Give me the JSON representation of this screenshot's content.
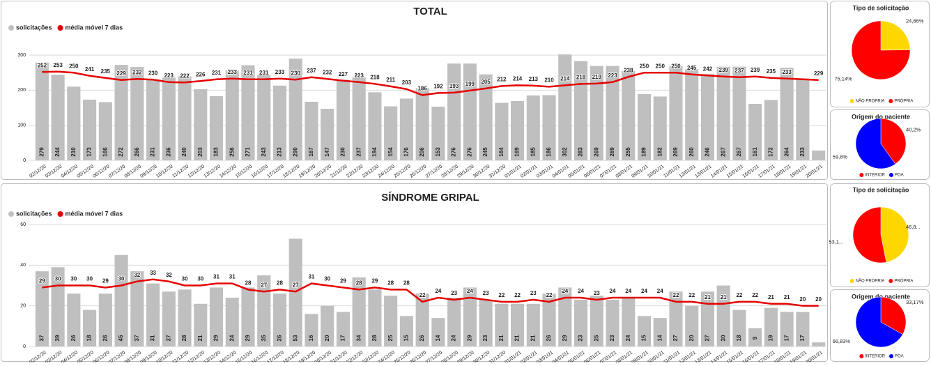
{
  "chart_data": [
    {
      "type": "combo",
      "title": "TOTAL",
      "categories": [
        "02/12/20",
        "03/12/20",
        "04/12/20",
        "05/12/20",
        "06/12/20",
        "07/12/20",
        "08/12/20",
        "09/12/20",
        "10/12/20",
        "11/12/20",
        "12/12/20",
        "13/12/20",
        "14/12/20",
        "15/12/20",
        "16/12/20",
        "17/12/20",
        "18/12/20",
        "19/12/20",
        "20/12/20",
        "21/12/20",
        "22/12/20",
        "23/12/20",
        "24/12/20",
        "25/12/20",
        "26/12/20",
        "27/12/20",
        "28/12/20",
        "29/12/20",
        "30/12/20",
        "31/12/20",
        "01/01/21",
        "02/01/21",
        "03/01/21",
        "04/01/21",
        "05/01/21",
        "06/01/21",
        "07/01/21",
        "08/01/21",
        "09/01/21",
        "10/01/21",
        "11/01/21",
        "12/01/21",
        "13/01/21",
        "14/01/21",
        "15/01/21",
        "16/01/21",
        "17/01/21",
        "18/01/21",
        "19/01/21",
        "20/01/21"
      ],
      "series": [
        {
          "name": "solicitações",
          "mark": "bar",
          "color": "#bfbfbf",
          "values": [
            279,
            244,
            210,
            173,
            166,
            272,
            266,
            231,
            236,
            240,
            203,
            183,
            256,
            271,
            243,
            213,
            290,
            167,
            147,
            230,
            237,
            194,
            154,
            176,
            206,
            153,
            276,
            276,
            245,
            164,
            169,
            185,
            186,
            302,
            283,
            269,
            269,
            255,
            189,
            182,
            269,
            260,
            246,
            267,
            267,
            161,
            172,
            264,
            233,
            28
          ],
          "value_labels": [
            "279",
            "244",
            "210",
            "173",
            "166",
            "272",
            "266",
            "231",
            "236",
            "240",
            "203",
            "183",
            "256",
            "271",
            "243",
            "213",
            "290",
            "167",
            "147",
            "230",
            "237",
            "194",
            "154",
            "176",
            "206",
            "153",
            "276",
            "276",
            "245",
            "164",
            "169",
            "185",
            "186",
            "302",
            "283",
            "269",
            "269",
            "255",
            "189",
            "182",
            "269",
            "260",
            "246",
            "267",
            "267",
            "161",
            "172",
            "264",
            "233",
            null
          ]
        },
        {
          "name": "média móvel 7 dias",
          "mark": "line",
          "color": "#e60000",
          "values": [
            252,
            253,
            250,
            241,
            235,
            229,
            232,
            230,
            223,
            222,
            226,
            231,
            233,
            231,
            231,
            233,
            230,
            237,
            232,
            227,
            223,
            218,
            211,
            203,
            186,
            192,
            193,
            199,
            205,
            212,
            214,
            213,
            210,
            214,
            218,
            219,
            223,
            238,
            250,
            250,
            250,
            245,
            242,
            239,
            237,
            239,
            235,
            233,
            231,
            229
          ],
          "value_labels": [
            "252",
            "253",
            "250",
            "241",
            "235",
            "229",
            "232",
            "230",
            "223",
            "222",
            "226",
            "231",
            "233",
            "231",
            "231",
            "233",
            "230",
            "237",
            "232",
            "227",
            "223",
            "218",
            "211",
            "203",
            "186",
            "192",
            "193",
            "199",
            "205",
            "212",
            "214",
            "213",
            "210",
            "214",
            "218",
            "219",
            "223",
            "238",
            "250",
            "250",
            "250",
            "245",
            "242",
            "239",
            "237",
            "239",
            "235",
            "233",
            null,
            "229"
          ]
        }
      ],
      "ylim": [
        0,
        320
      ],
      "yticks": [
        0,
        100,
        200,
        300
      ],
      "grid": true
    },
    {
      "type": "pie",
      "title": "Tipo de solicitação",
      "categories": [
        "NÃO PRÓPRIA",
        "PRÓPRIA"
      ],
      "values": [
        24.86,
        75.14
      ],
      "value_labels": [
        "24,86%",
        "75,14%"
      ],
      "colors": [
        "#ffd700",
        "#ff0000"
      ]
    },
    {
      "type": "pie",
      "title": "Origem do paciente",
      "categories": [
        "INTERIOR",
        "POA"
      ],
      "values": [
        40.2,
        59.8
      ],
      "value_labels": [
        "40,2%",
        "59,8%"
      ],
      "colors": [
        "#ff0000",
        "#0000ff"
      ]
    },
    {
      "type": "combo",
      "title": "SÍNDROME GRIPAL",
      "categories": [
        "02/12/20",
        "03/12/20",
        "04/12/20",
        "05/12/20",
        "06/12/20",
        "07/12/20",
        "08/12/20",
        "09/12/20",
        "10/12/20",
        "11/12/20",
        "12/12/20",
        "13/12/20",
        "14/12/20",
        "15/12/20",
        "16/12/20",
        "17/12/20",
        "18/12/20",
        "19/12/20",
        "20/12/20",
        "21/12/20",
        "22/12/20",
        "23/12/20",
        "24/12/20",
        "25/12/20",
        "26/12/20",
        "27/12/20",
        "28/12/20",
        "29/12/20",
        "30/12/20",
        "31/12/20",
        "01/01/21",
        "02/01/21",
        "03/01/21",
        "04/01/21",
        "05/01/21",
        "06/01/21",
        "07/01/21",
        "08/01/21",
        "09/01/21",
        "10/01/21",
        "11/01/21",
        "12/01/21",
        "13/01/21",
        "14/01/21",
        "15/01/21",
        "16/01/21",
        "17/01/21",
        "18/01/21",
        "19/01/21",
        "20/01/21"
      ],
      "series": [
        {
          "name": "solicitações",
          "mark": "bar",
          "color": "#bfbfbf",
          "values": [
            37,
            39,
            26,
            18,
            26,
            45,
            37,
            31,
            27,
            28,
            21,
            29,
            24,
            29,
            35,
            26,
            53,
            16,
            20,
            17,
            34,
            28,
            25,
            15,
            26,
            14,
            24,
            29,
            23,
            21,
            21,
            21,
            26,
            29,
            23,
            25,
            23,
            24,
            15,
            14,
            27,
            20,
            27,
            30,
            18,
            9,
            19,
            17,
            17,
            2
          ],
          "value_labels": [
            "37",
            "39",
            "26",
            "18",
            "26",
            "45",
            "37",
            "31",
            "27",
            "28",
            "21",
            "29",
            "24",
            "29",
            "35",
            "26",
            "53",
            "16",
            "20",
            "17",
            "34",
            "28",
            "25",
            "15",
            "26",
            "14",
            "24",
            "29",
            "23",
            "21",
            "21",
            "21",
            "26",
            "29",
            "23",
            "25",
            "23",
            "24",
            "15",
            "14",
            "27",
            "20",
            "27",
            "30",
            "18",
            "9",
            "19",
            "17",
            "17",
            null
          ]
        },
        {
          "name": "média móvel 7 dias",
          "mark": "line",
          "color": "#e60000",
          "values": [
            29,
            30,
            30,
            30,
            29,
            30,
            32,
            33,
            32,
            30,
            30,
            31,
            31,
            28,
            27,
            28,
            27,
            31,
            30,
            29,
            28,
            29,
            28,
            28,
            22,
            24,
            23,
            24,
            23,
            22,
            22,
            23,
            22,
            24,
            24,
            23,
            24,
            24,
            24,
            24,
            22,
            22,
            21,
            21,
            22,
            22,
            21,
            21,
            20,
            20
          ]
        }
      ],
      "ylim": [
        0,
        62
      ],
      "yticks": [
        0,
        20,
        40,
        60
      ],
      "grid": true
    },
    {
      "type": "pie",
      "title": "Tipo de solicitação",
      "categories": [
        "NÃO PRÓPRIA",
        "PRÓPRIA"
      ],
      "values": [
        46.85,
        53.15
      ],
      "value_labels": [
        "46,8...",
        "53,1..."
      ],
      "colors": [
        "#ffd700",
        "#ff0000"
      ]
    },
    {
      "type": "pie",
      "title": "Origem do paciente",
      "categories": [
        "INTERIOR",
        "POA"
      ],
      "values": [
        33.17,
        66.83
      ],
      "value_labels": [
        "33,17%",
        "66,83%"
      ],
      "colors": [
        "#ff0000",
        "#0000ff"
      ]
    }
  ]
}
